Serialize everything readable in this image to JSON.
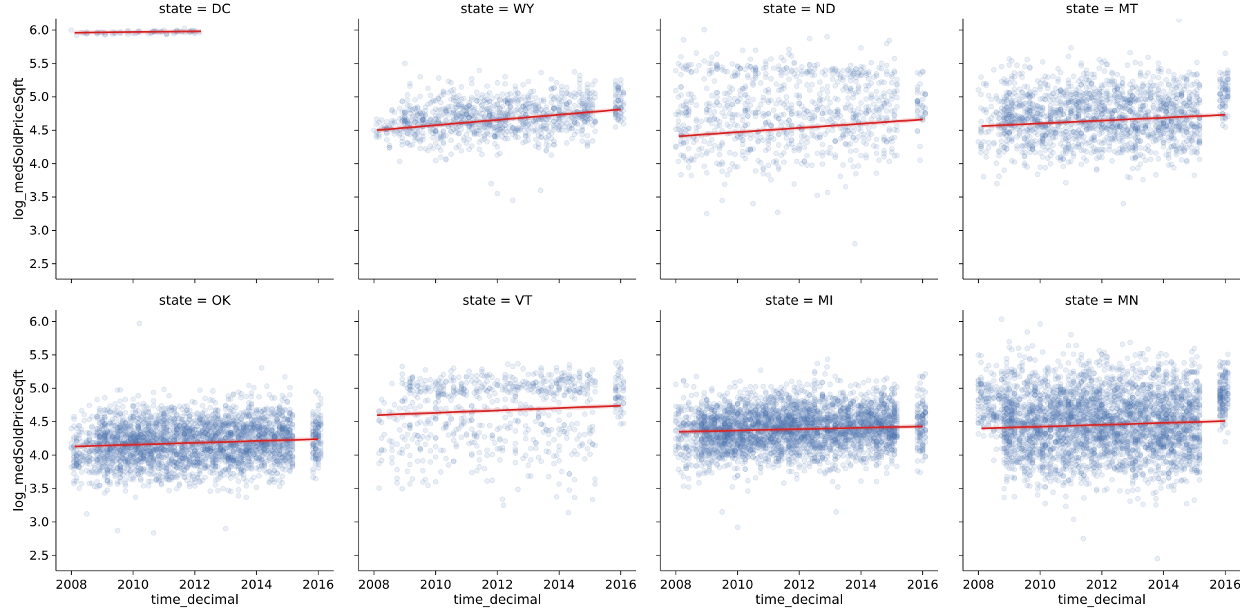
{
  "chart_data": {
    "type": "scatter",
    "layout": "facet-grid",
    "rows": 2,
    "cols": 4,
    "xlabel": "time_decimal",
    "ylabel": "log_medSoldPriceSqft",
    "xlim": [
      2007.5,
      2016.5
    ],
    "ylim": [
      2.27,
      6.17
    ],
    "xticks": [
      2008,
      2010,
      2012,
      2014,
      2016
    ],
    "yticks": [
      2.5,
      3.0,
      3.5,
      4.0,
      4.5,
      5.0,
      5.5,
      6.0
    ],
    "point_color": "#4c72b0",
    "point_alpha": 0.12,
    "line_color": "#d62728",
    "facets": [
      {
        "title": "state = DC",
        "trend": {
          "x": [
            2008.1,
            2012.2
          ],
          "y": [
            5.96,
            5.98
          ]
        },
        "clusters": [
          {
            "x": [
              2008.0,
              2012.2
            ],
            "center_y": [
              5.96,
              5.97
            ],
            "sd": 0.02,
            "n": 60
          }
        ],
        "outliers": [
          [
            2009.1,
            5.93
          ],
          [
            2010.2,
            5.98
          ]
        ]
      },
      {
        "title": "state = WY",
        "trend": {
          "x": [
            2008.1,
            2016.0
          ],
          "y": [
            4.5,
            4.81
          ]
        },
        "clusters": [
          {
            "x": [
              2008.8,
              2015.2
            ],
            "center_y": [
              4.6,
              4.75
            ],
            "sd": 0.22,
            "n": 900
          },
          {
            "x": [
              2008.0,
              2008.8
            ],
            "center_y": [
              4.5,
              4.55
            ],
            "sd": 0.12,
            "n": 40
          },
          {
            "x": [
              2015.8,
              2016.1
            ],
            "center_y": [
              4.9,
              4.9
            ],
            "sd": 0.18,
            "n": 60
          }
        ],
        "outliers": [
          [
            2009.0,
            5.5
          ],
          [
            2009.5,
            5.3
          ],
          [
            2012.0,
            3.55
          ],
          [
            2012.5,
            3.45
          ],
          [
            2011.8,
            3.7
          ],
          [
            2013.4,
            3.6
          ],
          [
            2010.1,
            5.28
          ]
        ]
      },
      {
        "title": "state = ND",
        "trend": {
          "x": [
            2008.1,
            2016.0
          ],
          "y": [
            4.41,
            4.66
          ]
        },
        "clusters": [
          {
            "x": [
              2008.0,
              2015.2
            ],
            "center_y": [
              4.6,
              4.75
            ],
            "sd": 0.42,
            "n": 700
          },
          {
            "x": [
              2008.0,
              2015.2
            ],
            "center_y": [
              5.45,
              5.33
            ],
            "sd": 0.06,
            "n": 120
          },
          {
            "x": [
              2015.8,
              2016.1
            ],
            "center_y": [
              4.9,
              4.9
            ],
            "sd": 0.25,
            "n": 40
          }
        ],
        "outliers": [
          [
            2012.9,
            5.9
          ],
          [
            2013.8,
            2.8
          ],
          [
            2009.0,
            3.25
          ],
          [
            2010.5,
            3.4
          ],
          [
            2011.3,
            3.27
          ]
        ]
      },
      {
        "title": "state = MT",
        "trend": {
          "x": [
            2008.1,
            2016.0
          ],
          "y": [
            4.56,
            4.73
          ]
        },
        "clusters": [
          {
            "x": [
              2008.8,
              2015.2
            ],
            "center_y": [
              4.65,
              4.75
            ],
            "sd": 0.33,
            "n": 1500
          },
          {
            "x": [
              2008.0,
              2008.8
            ],
            "center_y": [
              4.6,
              4.6
            ],
            "sd": 0.35,
            "n": 70
          },
          {
            "x": [
              2015.8,
              2016.1
            ],
            "center_y": [
              5.0,
              5.0
            ],
            "sd": 0.2,
            "n": 70
          }
        ],
        "outliers": [
          [
            2016.0,
            5.65
          ],
          [
            2008.6,
            3.7
          ],
          [
            2012.7,
            3.4
          ]
        ]
      },
      {
        "title": "state = OK",
        "trend": {
          "x": [
            2008.1,
            2016.0
          ],
          "y": [
            4.13,
            4.24
          ]
        },
        "clusters": [
          {
            "x": [
              2008.8,
              2015.2
            ],
            "center_y": [
              4.15,
              4.25
            ],
            "sd": 0.28,
            "n": 2600
          },
          {
            "x": [
              2008.0,
              2008.8
            ],
            "center_y": [
              4.1,
              4.1
            ],
            "sd": 0.25,
            "n": 140
          },
          {
            "x": [
              2015.8,
              2016.1
            ],
            "center_y": [
              4.25,
              4.25
            ],
            "sd": 0.22,
            "n": 120
          }
        ],
        "outliers": [
          [
            2010.2,
            5.97
          ],
          [
            2009.5,
            2.87
          ],
          [
            2013.0,
            2.9
          ],
          [
            2008.5,
            3.12
          ]
        ]
      },
      {
        "title": "state = VT",
        "trend": {
          "x": [
            2008.1,
            2016.0
          ],
          "y": [
            4.6,
            4.74
          ]
        },
        "clusters": [
          {
            "x": [
              2008.8,
              2015.2
            ],
            "center_y": [
              5.0,
              5.05
            ],
            "sd": 0.12,
            "n": 320
          },
          {
            "x": [
              2008.0,
              2015.2
            ],
            "center_y": [
              4.3,
              4.2
            ],
            "sd": 0.35,
            "n": 320
          },
          {
            "x": [
              2015.8,
              2016.1
            ],
            "center_y": [
              4.9,
              4.9
            ],
            "sd": 0.2,
            "n": 50
          }
        ],
        "outliers": [
          [
            2012.2,
            3.25
          ],
          [
            2014.3,
            3.14
          ],
          [
            2010.0,
            3.6
          ]
        ]
      },
      {
        "title": "state = MI",
        "trend": {
          "x": [
            2008.1,
            2016.0
          ],
          "y": [
            4.35,
            4.43
          ]
        },
        "clusters": [
          {
            "x": [
              2008.8,
              2015.2
            ],
            "center_y": [
              4.35,
              4.45
            ],
            "sd": 0.27,
            "n": 3000
          },
          {
            "x": [
              2008.0,
              2008.8
            ],
            "center_y": [
              4.35,
              4.35
            ],
            "sd": 0.3,
            "n": 170
          },
          {
            "x": [
              2015.8,
              2016.1
            ],
            "center_y": [
              4.45,
              4.45
            ],
            "sd": 0.28,
            "n": 120
          }
        ],
        "outliers": [
          [
            2010.0,
            2.92
          ],
          [
            2009.5,
            3.15
          ],
          [
            2013.2,
            3.15
          ],
          [
            2012.9,
            5.32
          ]
        ]
      },
      {
        "title": "state = MN",
        "trend": {
          "x": [
            2008.1,
            2016.0
          ],
          "y": [
            4.4,
            4.51
          ]
        },
        "clusters": [
          {
            "x": [
              2008.8,
              2015.2
            ],
            "center_y": [
              4.45,
              4.5
            ],
            "sd": 0.42,
            "n": 3200
          },
          {
            "x": [
              2008.0,
              2008.8
            ],
            "center_y": [
              4.75,
              4.75
            ],
            "sd": 0.3,
            "n": 160
          },
          {
            "x": [
              2015.8,
              2016.1
            ],
            "center_y": [
              4.9,
              4.9
            ],
            "sd": 0.25,
            "n": 140
          }
        ],
        "outliers": [
          [
            2013.8,
            2.45
          ],
          [
            2011.4,
            2.75
          ],
          [
            2009.3,
            5.6
          ]
        ]
      }
    ]
  }
}
